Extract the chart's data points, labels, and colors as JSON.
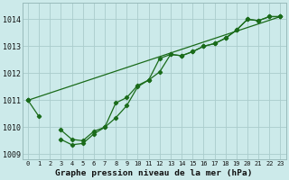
{
  "xlabel": "Graphe pression niveau de la mer (hPa)",
  "bg_color": "#cceaea",
  "grid_color": "#aacccc",
  "line_color": "#1a6b1a",
  "xlim": [
    -0.5,
    23.5
  ],
  "ylim": [
    1008.8,
    1014.6
  ],
  "yticks": [
    1009,
    1010,
    1011,
    1012,
    1013,
    1014
  ],
  "xticks": [
    0,
    1,
    2,
    3,
    4,
    5,
    6,
    7,
    8,
    9,
    10,
    11,
    12,
    13,
    14,
    15,
    16,
    17,
    18,
    19,
    20,
    21,
    22,
    23
  ],
  "series1_x": [
    0,
    1,
    3,
    4,
    5,
    6,
    7,
    8,
    9,
    10,
    11,
    12,
    13,
    14,
    15,
    16,
    17,
    18,
    19,
    20,
    21,
    22,
    23
  ],
  "series1_y": [
    1011.0,
    1010.4,
    1009.9,
    1009.55,
    1009.5,
    1009.85,
    1010.0,
    1010.35,
    1010.8,
    1011.5,
    1011.75,
    1012.05,
    1012.7,
    1012.65,
    1012.8,
    1013.0,
    1013.1,
    1013.3,
    1013.6,
    1014.0,
    1013.95,
    1014.1,
    1014.1
  ],
  "series2_x": [
    0,
    3,
    4,
    5,
    6,
    7,
    8,
    9,
    10,
    11,
    12,
    13,
    14,
    15,
    16,
    17,
    18,
    19,
    20,
    21,
    22,
    23
  ],
  "series2_y": [
    1011.0,
    1009.55,
    1009.35,
    1009.4,
    1009.75,
    1010.0,
    1010.9,
    1011.1,
    1011.55,
    1011.75,
    1012.55,
    1012.7,
    1012.65,
    1012.8,
    1013.0,
    1013.1,
    1013.3,
    1013.6,
    1014.0,
    1013.95,
    1014.1,
    1014.1
  ],
  "series3_x": [
    0,
    23
  ],
  "series3_y": [
    1011.0,
    1014.1
  ]
}
